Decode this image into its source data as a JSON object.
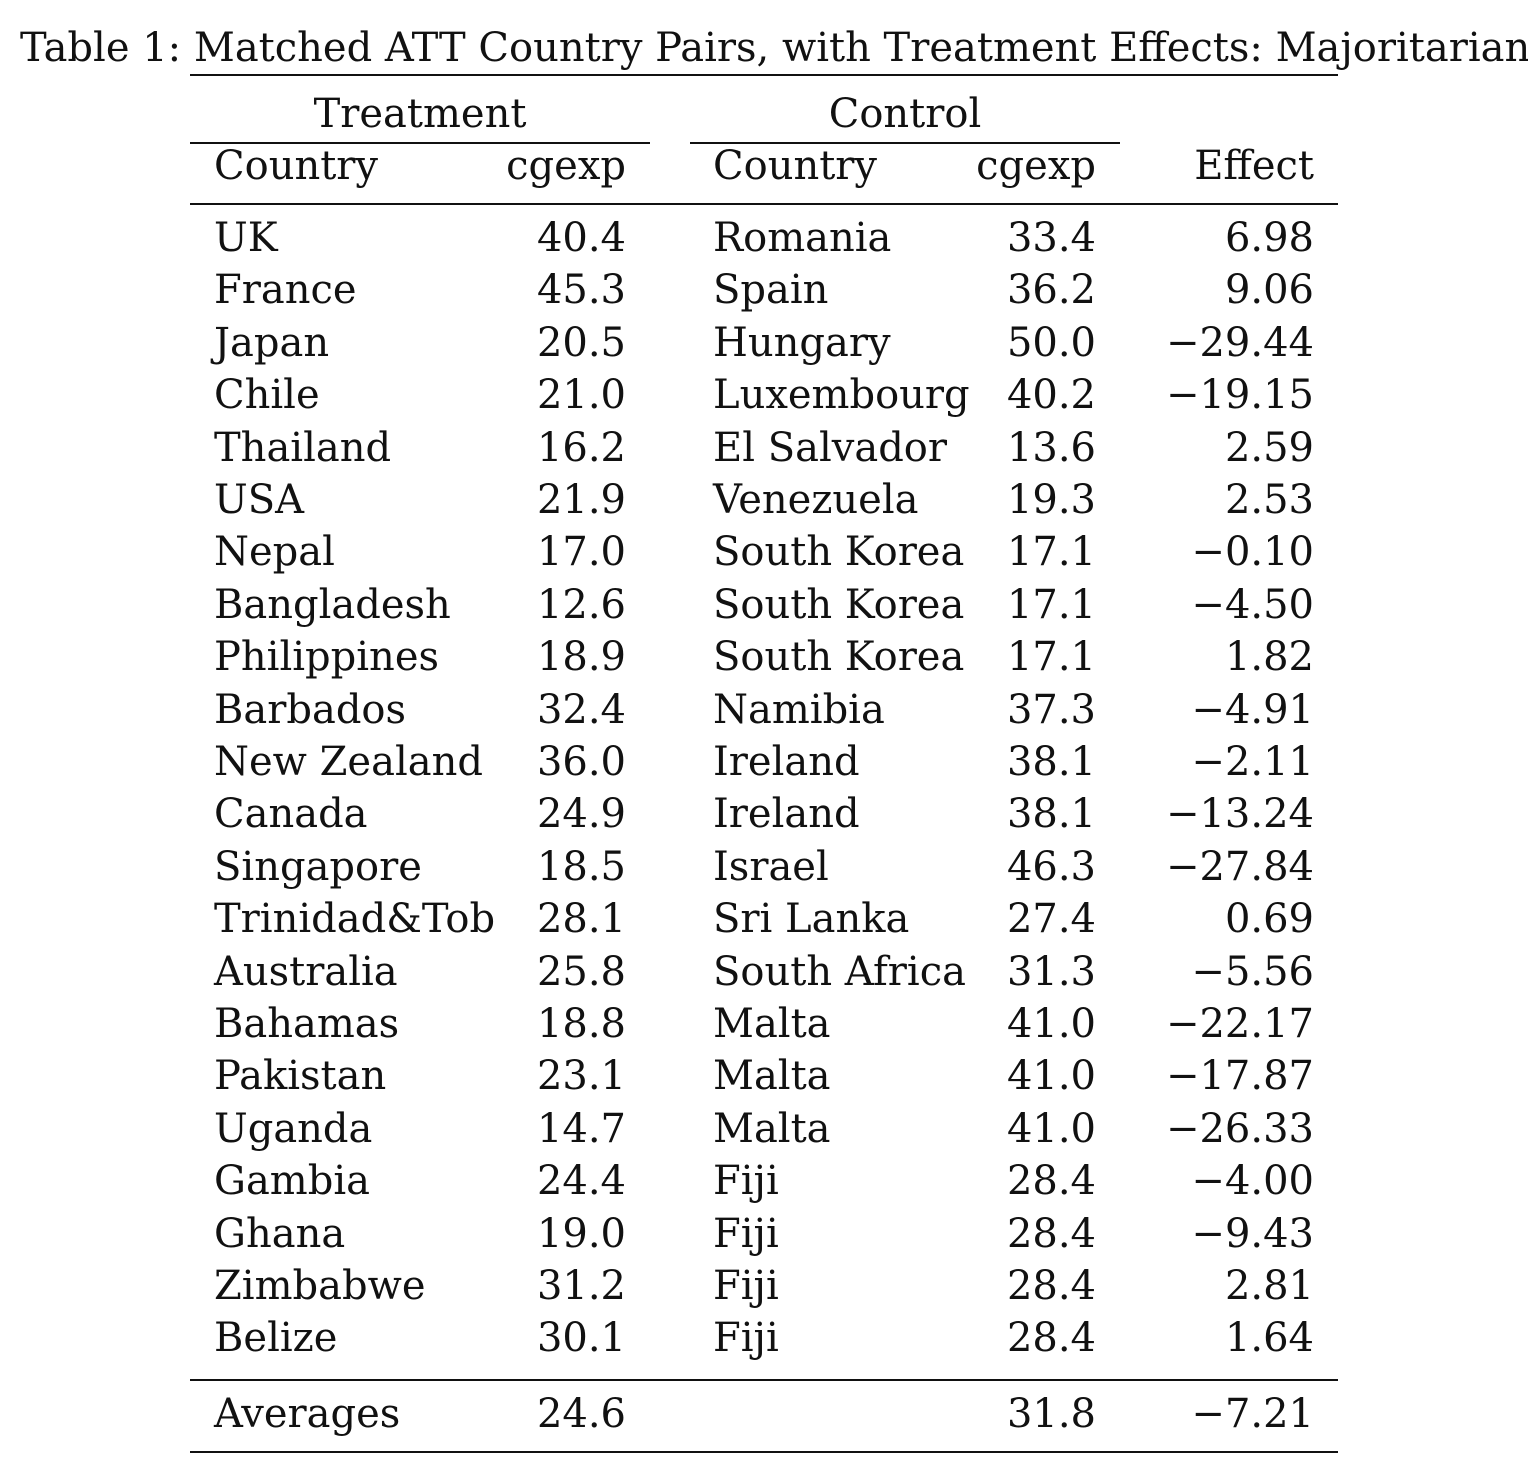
{
  "caption": {
    "label": "Table 1:",
    "title": "Matched ATT Country Pairs, with Treatment Effects: Majoritarianism"
  },
  "groups": {
    "treatment": "Treatment",
    "control": "Control"
  },
  "columns": {
    "t_country": "Country",
    "t_cgexp": "cgexp",
    "c_country": "Country",
    "c_cgexp": "cgexp",
    "effect": "Effect"
  },
  "rows": [
    {
      "t_country": "UK",
      "t_cgexp": "40.4",
      "c_country": "Romania",
      "c_cgexp": "33.4",
      "effect": "6.98"
    },
    {
      "t_country": "France",
      "t_cgexp": "45.3",
      "c_country": "Spain",
      "c_cgexp": "36.2",
      "effect": "9.06"
    },
    {
      "t_country": "Japan",
      "t_cgexp": "20.5",
      "c_country": "Hungary",
      "c_cgexp": "50.0",
      "effect": "−29.44"
    },
    {
      "t_country": "Chile",
      "t_cgexp": "21.0",
      "c_country": "Luxembourg",
      "c_cgexp": "40.2",
      "effect": "−19.15"
    },
    {
      "t_country": "Thailand",
      "t_cgexp": "16.2",
      "c_country": "El Salvador",
      "c_cgexp": "13.6",
      "effect": "2.59"
    },
    {
      "t_country": "USA",
      "t_cgexp": "21.9",
      "c_country": "Venezuela",
      "c_cgexp": "19.3",
      "effect": "2.53"
    },
    {
      "t_country": "Nepal",
      "t_cgexp": "17.0",
      "c_country": "South Korea",
      "c_cgexp": "17.1",
      "effect": "−0.10"
    },
    {
      "t_country": "Bangladesh",
      "t_cgexp": "12.6",
      "c_country": "South Korea",
      "c_cgexp": "17.1",
      "effect": "−4.50"
    },
    {
      "t_country": "Philippines",
      "t_cgexp": "18.9",
      "c_country": "South Korea",
      "c_cgexp": "17.1",
      "effect": "1.82"
    },
    {
      "t_country": "Barbados",
      "t_cgexp": "32.4",
      "c_country": "Namibia",
      "c_cgexp": "37.3",
      "effect": "−4.91"
    },
    {
      "t_country": "New Zealand",
      "t_cgexp": "36.0",
      "c_country": "Ireland",
      "c_cgexp": "38.1",
      "effect": "−2.11"
    },
    {
      "t_country": "Canada",
      "t_cgexp": "24.9",
      "c_country": "Ireland",
      "c_cgexp": "38.1",
      "effect": "−13.24"
    },
    {
      "t_country": "Singapore",
      "t_cgexp": "18.5",
      "c_country": "Israel",
      "c_cgexp": "46.3",
      "effect": "−27.84"
    },
    {
      "t_country": "Trinidad&Tob",
      "t_cgexp": "28.1",
      "c_country": "Sri Lanka",
      "c_cgexp": "27.4",
      "effect": "0.69"
    },
    {
      "t_country": "Australia",
      "t_cgexp": "25.8",
      "c_country": "South Africa",
      "c_cgexp": "31.3",
      "effect": "−5.56"
    },
    {
      "t_country": "Bahamas",
      "t_cgexp": "18.8",
      "c_country": "Malta",
      "c_cgexp": "41.0",
      "effect": "−22.17"
    },
    {
      "t_country": "Pakistan",
      "t_cgexp": "23.1",
      "c_country": "Malta",
      "c_cgexp": "41.0",
      "effect": "−17.87"
    },
    {
      "t_country": "Uganda",
      "t_cgexp": "14.7",
      "c_country": "Malta",
      "c_cgexp": "41.0",
      "effect": "−26.33"
    },
    {
      "t_country": "Gambia",
      "t_cgexp": "24.4",
      "c_country": "Fiji",
      "c_cgexp": "28.4",
      "effect": "−4.00"
    },
    {
      "t_country": "Ghana",
      "t_cgexp": "19.0",
      "c_country": "Fiji",
      "c_cgexp": "28.4",
      "effect": "−9.43"
    },
    {
      "t_country": "Zimbabwe",
      "t_cgexp": "31.2",
      "c_country": "Fiji",
      "c_cgexp": "28.4",
      "effect": "2.81"
    },
    {
      "t_country": "Belize",
      "t_cgexp": "30.1",
      "c_country": "Fiji",
      "c_cgexp": "28.4",
      "effect": "1.64"
    }
  ],
  "averages": {
    "label": "Averages",
    "t_cgexp": "24.6",
    "c_cgexp": "31.8",
    "effect": "−7.21"
  }
}
